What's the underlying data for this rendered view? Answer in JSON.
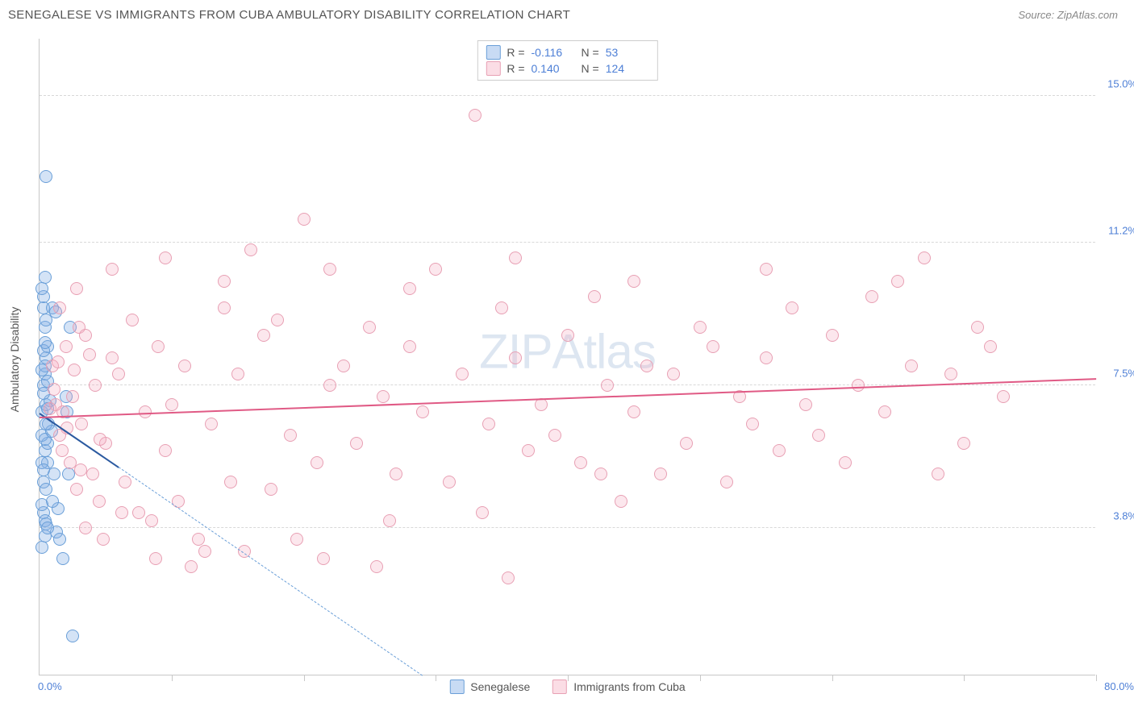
{
  "header": {
    "title": "SENEGALESE VS IMMIGRANTS FROM CUBA AMBULATORY DISABILITY CORRELATION CHART",
    "source": "Source: ZipAtlas.com"
  },
  "watermark": {
    "bold": "ZIP",
    "light": "Atlas"
  },
  "chart": {
    "type": "scatter",
    "yaxis_title": "Ambulatory Disability",
    "xlim": [
      0,
      80
    ],
    "ylim": [
      0,
      16.5
    ],
    "xticks_pct": [
      0,
      10,
      20,
      30,
      40,
      50,
      60,
      70,
      80
    ],
    "yticks": [
      {
        "v": 3.8,
        "label": "3.8%"
      },
      {
        "v": 7.5,
        "label": "7.5%"
      },
      {
        "v": 11.2,
        "label": "11.2%"
      },
      {
        "v": 15.0,
        "label": "15.0%"
      }
    ],
    "xaxis_labels": {
      "min": "0.0%",
      "max": "80.0%"
    },
    "background_color": "#ffffff",
    "grid_color": "#d8d8d8",
    "marker_radius": 8,
    "series": [
      {
        "id": "senegalese",
        "label": "Senegalese",
        "color_fill": "rgba(133,175,230,0.35)",
        "color_stroke": "#6a9fd8",
        "R": "-0.116",
        "N": "53",
        "trend": {
          "x1": 0,
          "y1": 6.8,
          "x2": 6.0,
          "y2": 5.4,
          "color": "#2b5aa0"
        },
        "trend_extrap": {
          "x1": 6.0,
          "y1": 5.4,
          "x2": 29.0,
          "y2": 0.0,
          "color": "#6a9fd8"
        },
        "points": [
          [
            0.2,
            6.8
          ],
          [
            0.3,
            7.5
          ],
          [
            0.4,
            5.8
          ],
          [
            0.5,
            8.2
          ],
          [
            0.6,
            6.0
          ],
          [
            0.3,
            9.5
          ],
          [
            0.4,
            9.0
          ],
          [
            0.5,
            7.0
          ],
          [
            0.2,
            6.2
          ],
          [
            0.6,
            5.5
          ],
          [
            0.3,
            4.2
          ],
          [
            0.4,
            4.0
          ],
          [
            0.5,
            3.9
          ],
          [
            0.2,
            3.3
          ],
          [
            0.3,
            9.8
          ],
          [
            0.4,
            10.3
          ],
          [
            0.2,
            10.0
          ],
          [
            0.5,
            12.9
          ],
          [
            0.3,
            5.0
          ],
          [
            0.6,
            8.5
          ],
          [
            0.4,
            7.8
          ],
          [
            1.0,
            9.5
          ],
          [
            1.2,
            9.4
          ],
          [
            1.3,
            3.7
          ],
          [
            1.4,
            4.3
          ],
          [
            1.5,
            3.5
          ],
          [
            1.8,
            3.0
          ],
          [
            2.1,
            6.8
          ],
          [
            2.3,
            9.0
          ],
          [
            2.0,
            7.2
          ],
          [
            2.2,
            5.2
          ],
          [
            0.7,
            6.5
          ],
          [
            0.8,
            7.1
          ],
          [
            0.9,
            6.3
          ],
          [
            1.1,
            5.2
          ],
          [
            1.0,
            4.5
          ],
          [
            2.5,
            1.0
          ],
          [
            0.4,
            3.6
          ],
          [
            0.6,
            3.8
          ],
          [
            0.5,
            6.5
          ],
          [
            0.3,
            7.3
          ],
          [
            0.2,
            5.5
          ],
          [
            0.4,
            8.0
          ],
          [
            0.3,
            8.4
          ],
          [
            0.5,
            9.2
          ],
          [
            0.2,
            7.9
          ],
          [
            0.6,
            6.9
          ],
          [
            0.4,
            6.1
          ],
          [
            0.3,
            5.3
          ],
          [
            0.5,
            4.8
          ],
          [
            0.2,
            4.4
          ],
          [
            0.6,
            7.6
          ],
          [
            0.4,
            8.6
          ]
        ]
      },
      {
        "id": "cuba",
        "label": "Immigrants from Cuba",
        "color_fill": "rgba(245,170,190,0.28)",
        "color_stroke": "#e494aa",
        "R": "0.140",
        "N": "124",
        "trend": {
          "x1": 0,
          "y1": 6.7,
          "x2": 80,
          "y2": 7.7,
          "color": "#e05a85"
        },
        "points": [
          [
            1,
            8.0
          ],
          [
            1.2,
            7.0
          ],
          [
            1.5,
            6.2
          ],
          [
            1.8,
            6.8
          ],
          [
            2,
            8.5
          ],
          [
            2.3,
            5.5
          ],
          [
            2.5,
            7.2
          ],
          [
            2.8,
            4.8
          ],
          [
            3,
            9.0
          ],
          [
            3.2,
            6.5
          ],
          [
            3.5,
            8.8
          ],
          [
            4,
            5.2
          ],
          [
            4.2,
            7.5
          ],
          [
            4.5,
            4.5
          ],
          [
            5,
            6.0
          ],
          [
            5.5,
            8.2
          ],
          [
            6,
            7.8
          ],
          [
            6.5,
            5.0
          ],
          [
            7,
            9.2
          ],
          [
            7.5,
            4.2
          ],
          [
            8,
            6.8
          ],
          [
            8.5,
            4.0
          ],
          [
            9,
            8.5
          ],
          [
            9.5,
            5.8
          ],
          [
            10,
            7.0
          ],
          [
            10.5,
            4.5
          ],
          [
            11,
            8.0
          ],
          [
            12,
            3.5
          ],
          [
            12.5,
            3.2
          ],
          [
            13,
            6.5
          ],
          [
            14,
            9.5
          ],
          [
            14.5,
            5.0
          ],
          [
            15,
            7.8
          ],
          [
            16,
            11.0
          ],
          [
            17,
            8.8
          ],
          [
            17.5,
            4.8
          ],
          [
            18,
            9.2
          ],
          [
            19,
            6.2
          ],
          [
            20,
            11.8
          ],
          [
            21,
            5.5
          ],
          [
            21.5,
            3.0
          ],
          [
            22,
            7.5
          ],
          [
            23,
            8.0
          ],
          [
            24,
            6.0
          ],
          [
            25,
            9.0
          ],
          [
            25.5,
            2.8
          ],
          [
            26,
            7.2
          ],
          [
            27,
            5.2
          ],
          [
            28,
            8.5
          ],
          [
            29,
            6.8
          ],
          [
            30,
            10.5
          ],
          [
            31,
            5.0
          ],
          [
            32,
            7.8
          ],
          [
            33,
            14.5
          ],
          [
            34,
            6.5
          ],
          [
            35,
            9.5
          ],
          [
            35.5,
            2.5
          ],
          [
            36,
            8.2
          ],
          [
            37,
            5.8
          ],
          [
            38,
            7.0
          ],
          [
            39,
            6.2
          ],
          [
            40,
            8.8
          ],
          [
            41,
            5.5
          ],
          [
            42,
            9.8
          ],
          [
            43,
            7.5
          ],
          [
            44,
            4.5
          ],
          [
            45,
            6.8
          ],
          [
            46,
            8.0
          ],
          [
            47,
            5.2
          ],
          [
            48,
            7.8
          ],
          [
            49,
            6.0
          ],
          [
            50,
            9.0
          ],
          [
            51,
            8.5
          ],
          [
            52,
            5.0
          ],
          [
            53,
            7.2
          ],
          [
            54,
            6.5
          ],
          [
            55,
            8.2
          ],
          [
            56,
            5.8
          ],
          [
            57,
            9.5
          ],
          [
            58,
            7.0
          ],
          [
            59,
            6.2
          ],
          [
            60,
            8.8
          ],
          [
            61,
            5.5
          ],
          [
            62,
            7.5
          ],
          [
            63,
            9.8
          ],
          [
            64,
            6.8
          ],
          [
            65,
            10.2
          ],
          [
            66,
            8.0
          ],
          [
            67,
            10.8
          ],
          [
            68,
            5.2
          ],
          [
            69,
            7.8
          ],
          [
            70,
            6.0
          ],
          [
            71,
            9.0
          ],
          [
            72,
            8.5
          ],
          [
            73,
            7.2
          ],
          [
            3.5,
            3.8
          ],
          [
            4.8,
            3.5
          ],
          [
            6.2,
            4.2
          ],
          [
            8.8,
            3.0
          ],
          [
            11.5,
            2.8
          ],
          [
            15.5,
            3.2
          ],
          [
            19.5,
            3.5
          ],
          [
            26.5,
            4.0
          ],
          [
            33.5,
            4.2
          ],
          [
            42.5,
            5.2
          ],
          [
            1.5,
            9.5
          ],
          [
            2.8,
            10.0
          ],
          [
            5.5,
            10.5
          ],
          [
            9.5,
            10.8
          ],
          [
            14,
            10.2
          ],
          [
            22,
            10.5
          ],
          [
            28,
            10.0
          ],
          [
            36,
            10.8
          ],
          [
            45,
            10.2
          ],
          [
            55,
            10.5
          ],
          [
            0.8,
            6.9
          ],
          [
            1.1,
            7.4
          ],
          [
            1.4,
            8.1
          ],
          [
            1.7,
            5.8
          ],
          [
            2.1,
            6.4
          ],
          [
            2.6,
            7.9
          ],
          [
            3.1,
            5.3
          ],
          [
            3.8,
            8.3
          ],
          [
            4.6,
            6.1
          ]
        ]
      }
    ]
  }
}
